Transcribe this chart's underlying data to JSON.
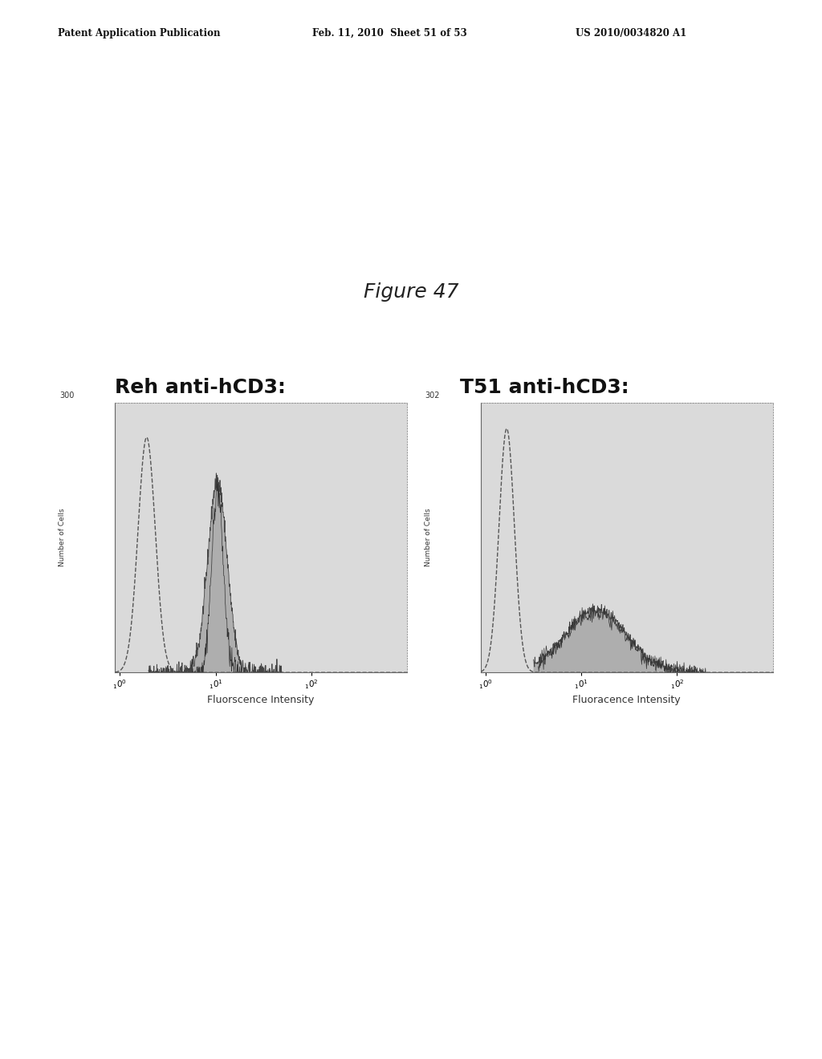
{
  "figure_title": "Figure 47",
  "header_left": "Patent Application Publication",
  "header_mid": "Feb. 11, 2010  Sheet 51 of 53",
  "header_right": "US 2010/0034820 A1",
  "left_panel_title": "Reh anti-hCD3:",
  "right_panel_title": "T51 anti-hCD3:",
  "left_ylabel": "Number of Cells",
  "right_ylabel": "Number of Cells",
  "left_xlabel": "Fluorscence Intensity",
  "right_xlabel": "Fluoracence Intensity",
  "left_ymax_label": "300",
  "right_ymax_label": "302",
  "bg_color": "#d8d8d8",
  "plot_bg": "#e0e0e0",
  "dashed_color": "#555555",
  "filled_color": "#aaaaaa",
  "filled_edge": "#444444",
  "white": "#ffffff"
}
